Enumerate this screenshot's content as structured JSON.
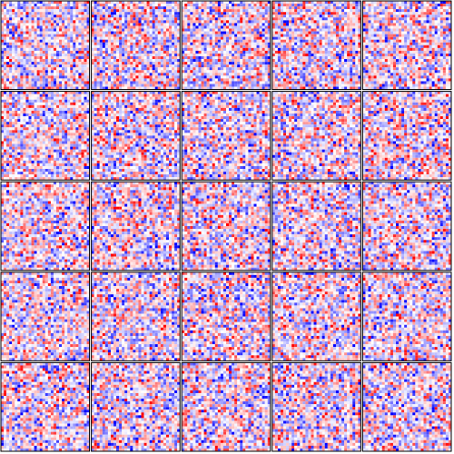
{
  "chart_data": {
    "type": "heatmap",
    "layout": "small-multiples",
    "panel_rows": 5,
    "panel_cols": 5,
    "cells_per_panel_side": 32,
    "colormap": "bwr",
    "color_scale": {
      "low": "#0000ff",
      "mid": "#ffffff",
      "high": "#ff0000",
      "vmin": -1,
      "vmax": 1
    },
    "panel_border_color": "#000000",
    "title": "",
    "xlabel": "",
    "ylabel": "",
    "axes_ticks": false,
    "grid": false,
    "legend": "none",
    "values_note": "",
    "random_seed": 271828
  }
}
